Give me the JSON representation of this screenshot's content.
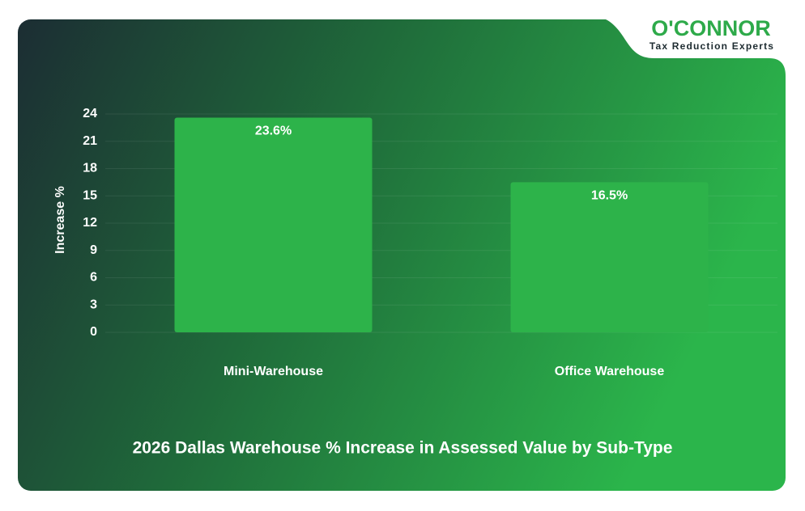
{
  "chart_data": {
    "type": "bar",
    "title": "2026 Dallas Warehouse % Increase in Assessed Value by Sub-Type",
    "y_label": "Increase %",
    "categories": [
      "Mini-Warehouse",
      "Office Warehouse"
    ],
    "values": [
      23.6,
      16.5
    ],
    "value_labels": [
      "23.6%",
      "16.5%"
    ],
    "color": "#2db34a",
    "ylim": [
      0,
      24
    ],
    "yticks": [
      0,
      3,
      6,
      9,
      12,
      15,
      18,
      21,
      24
    ],
    "grid": true
  },
  "logo": {
    "name": "O'CONNOR",
    "tagline": "Tax Reduction Experts"
  }
}
